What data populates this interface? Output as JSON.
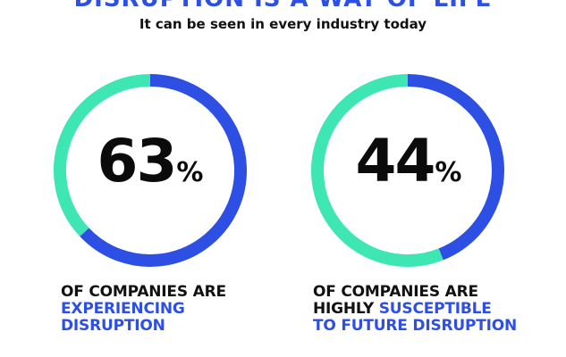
{
  "header": {
    "title": "DISRUPTION IS A WAY OF LIFE",
    "subtitle": "It can be seen in every industry today"
  },
  "colors": {
    "accent_blue": "#2d4fe3",
    "teal": "#3ee6b4",
    "text": "#111111"
  },
  "chart_data": [
    {
      "type": "pie",
      "values": [
        63,
        37
      ],
      "value_label": "63",
      "unit": "%",
      "caption_lines": [
        {
          "segments": [
            {
              "text": "OF COMPANIES ARE",
              "highlight": false
            }
          ]
        },
        {
          "segments": [
            {
              "text": "EXPERIENCING",
              "highlight": true
            }
          ]
        },
        {
          "segments": [
            {
              "text": "DISRUPTION",
              "highlight": true
            }
          ]
        }
      ]
    },
    {
      "type": "pie",
      "values": [
        44,
        56
      ],
      "value_label": "44",
      "unit": "%",
      "caption_lines": [
        {
          "segments": [
            {
              "text": "OF COMPANIES ARE",
              "highlight": false
            }
          ]
        },
        {
          "segments": [
            {
              "text": "HIGHLY ",
              "highlight": false
            },
            {
              "text": "SUSCEPTIBLE",
              "highlight": true
            }
          ]
        },
        {
          "segments": [
            {
              "text": "TO FUTURE DISRUPTION",
              "highlight": true
            }
          ]
        }
      ]
    }
  ]
}
